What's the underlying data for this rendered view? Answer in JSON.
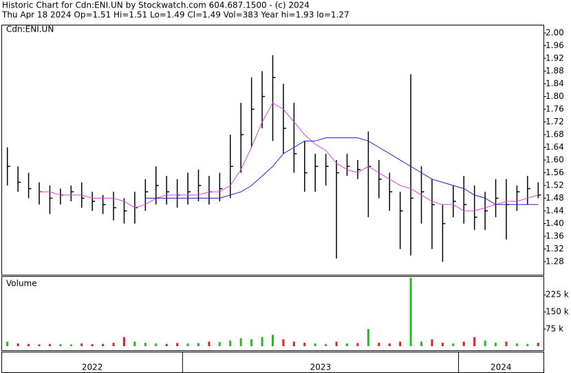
{
  "chart_data": {
    "type": "ohlc",
    "title": "Historic Chart for Cdn:ENI.UN by Stockwatch.com 604.687.1500 - (c) 2024",
    "subtitle": "Thu Apr 18 2024  Op=1.51  Hi=1.51  Lo=1.49  Cl=1.49  Vol=383  Year hi=1.93  lo=1.27",
    "symbol": "Cdn:ENI.UN",
    "categories": [
      "2022",
      null,
      null,
      null,
      null,
      null,
      null,
      null,
      null,
      null,
      null,
      null,
      null,
      null,
      null,
      null,
      null,
      "2023",
      null,
      null,
      null,
      null,
      null,
      null,
      null,
      null,
      null,
      null,
      null,
      null,
      null,
      null,
      null,
      null,
      null,
      null,
      null,
      null,
      null,
      null,
      null,
      null,
      null,
      "2024",
      null,
      null,
      null,
      null,
      null,
      null,
      null
    ],
    "high": [
      1.64,
      1.58,
      1.56,
      1.53,
      1.52,
      1.51,
      1.52,
      1.53,
      1.5,
      1.49,
      1.5,
      1.48,
      1.5,
      1.54,
      1.58,
      1.55,
      1.54,
      1.56,
      1.57,
      1.55,
      1.56,
      1.68,
      1.78,
      1.86,
      1.88,
      1.93,
      1.84,
      1.78,
      1.66,
      1.62,
      1.62,
      1.6,
      1.62,
      1.6,
      1.69,
      1.6,
      1.56,
      1.5,
      1.87,
      1.58,
      1.54,
      1.46,
      1.52,
      1.55,
      1.52,
      1.5,
      1.54,
      1.54,
      1.52,
      1.55,
      1.53
    ],
    "low": [
      1.52,
      1.5,
      1.48,
      1.46,
      1.43,
      1.46,
      1.47,
      1.45,
      1.44,
      1.43,
      1.41,
      1.4,
      1.4,
      1.44,
      1.46,
      1.46,
      1.45,
      1.46,
      1.47,
      1.46,
      1.47,
      1.48,
      1.56,
      1.64,
      1.7,
      1.66,
      1.62,
      1.56,
      1.5,
      1.5,
      1.52,
      1.29,
      1.55,
      1.54,
      1.42,
      1.48,
      1.44,
      1.32,
      1.3,
      1.4,
      1.32,
      1.28,
      1.42,
      1.4,
      1.38,
      1.38,
      1.42,
      1.35,
      1.44,
      1.46,
      1.48
    ],
    "close": [
      1.58,
      1.53,
      1.51,
      1.5,
      1.48,
      1.49,
      1.5,
      1.48,
      1.47,
      1.46,
      1.45,
      1.44,
      1.45,
      1.5,
      1.52,
      1.5,
      1.49,
      1.5,
      1.52,
      1.5,
      1.51,
      1.58,
      1.68,
      1.76,
      1.8,
      1.86,
      1.7,
      1.62,
      1.56,
      1.58,
      1.58,
      1.56,
      1.58,
      1.57,
      1.58,
      1.54,
      1.5,
      1.44,
      1.48,
      1.5,
      1.46,
      1.4,
      1.47,
      1.46,
      1.42,
      1.44,
      1.48,
      1.46,
      1.5,
      1.51,
      1.49
    ],
    "color": "#000000",
    "moving_averages": [
      {
        "color": "#e040e0",
        "values": [
          null,
          null,
          null,
          1.5,
          1.5,
          1.49,
          1.49,
          1.49,
          1.48,
          1.48,
          1.48,
          1.47,
          1.45,
          1.46,
          1.48,
          1.49,
          1.49,
          1.49,
          1.49,
          1.5,
          1.5,
          1.52,
          1.57,
          1.64,
          1.72,
          1.78,
          1.76,
          1.72,
          1.68,
          1.65,
          1.63,
          1.59,
          1.57,
          1.56,
          1.58,
          1.56,
          1.54,
          1.52,
          1.51,
          1.49,
          1.47,
          1.46,
          1.46,
          1.44,
          1.44,
          1.45,
          1.46,
          1.47,
          1.47,
          1.48,
          1.49
        ]
      },
      {
        "color": "#2020c0",
        "values": [
          null,
          null,
          null,
          null,
          null,
          null,
          null,
          null,
          null,
          null,
          null,
          null,
          null,
          1.48,
          1.48,
          1.48,
          1.48,
          1.48,
          1.48,
          1.48,
          1.48,
          1.49,
          1.5,
          1.52,
          1.55,
          1.58,
          1.62,
          1.64,
          1.66,
          1.66,
          1.67,
          1.67,
          1.67,
          1.67,
          1.66,
          1.64,
          1.62,
          1.6,
          1.58,
          1.56,
          1.54,
          1.53,
          1.52,
          1.51,
          1.49,
          1.48,
          1.46,
          1.46,
          1.46,
          1.46,
          1.46
        ]
      }
    ],
    "ylim": [
      1.24,
      2.02
    ],
    "yticks": [
      {
        "value": 2,
        "label": "2.00"
      },
      1.96,
      1.92,
      1.88,
      1.84,
      {
        "value": 1.8,
        "label": "1.80"
      },
      1.76,
      1.72,
      1.68,
      1.64,
      {
        "value": 1.6,
        "label": "1.60"
      },
      1.56,
      1.52,
      1.48,
      1.44,
      {
        "value": 1.4,
        "label": "1.40"
      },
      1.36,
      1.32,
      1.28
    ],
    "grid": false,
    "volume": {
      "label": "Volume",
      "values": [
        20000,
        12000,
        10000,
        8000,
        10000,
        9000,
        8000,
        12000,
        9000,
        10000,
        15000,
        40000,
        20000,
        15000,
        12000,
        10000,
        14000,
        12000,
        14000,
        20000,
        18000,
        25000,
        35000,
        30000,
        40000,
        50000,
        30000,
        20000,
        15000,
        12000,
        10000,
        20000,
        12000,
        14000,
        75000,
        15000,
        12000,
        20000,
        300000,
        20000,
        30000,
        15000,
        12000,
        20000,
        40000,
        25000,
        15000,
        20000,
        12000,
        10000,
        15000
      ],
      "up_color": "#22bb22",
      "down_color": "#dd2222",
      "ylim": [
        0,
        310000
      ],
      "yticks": [
        {
          "value": 225000,
          "label": "225 k"
        },
        {
          "value": 150000,
          "label": "150 k"
        },
        {
          "value": 75000,
          "label": "75 k"
        }
      ]
    }
  }
}
